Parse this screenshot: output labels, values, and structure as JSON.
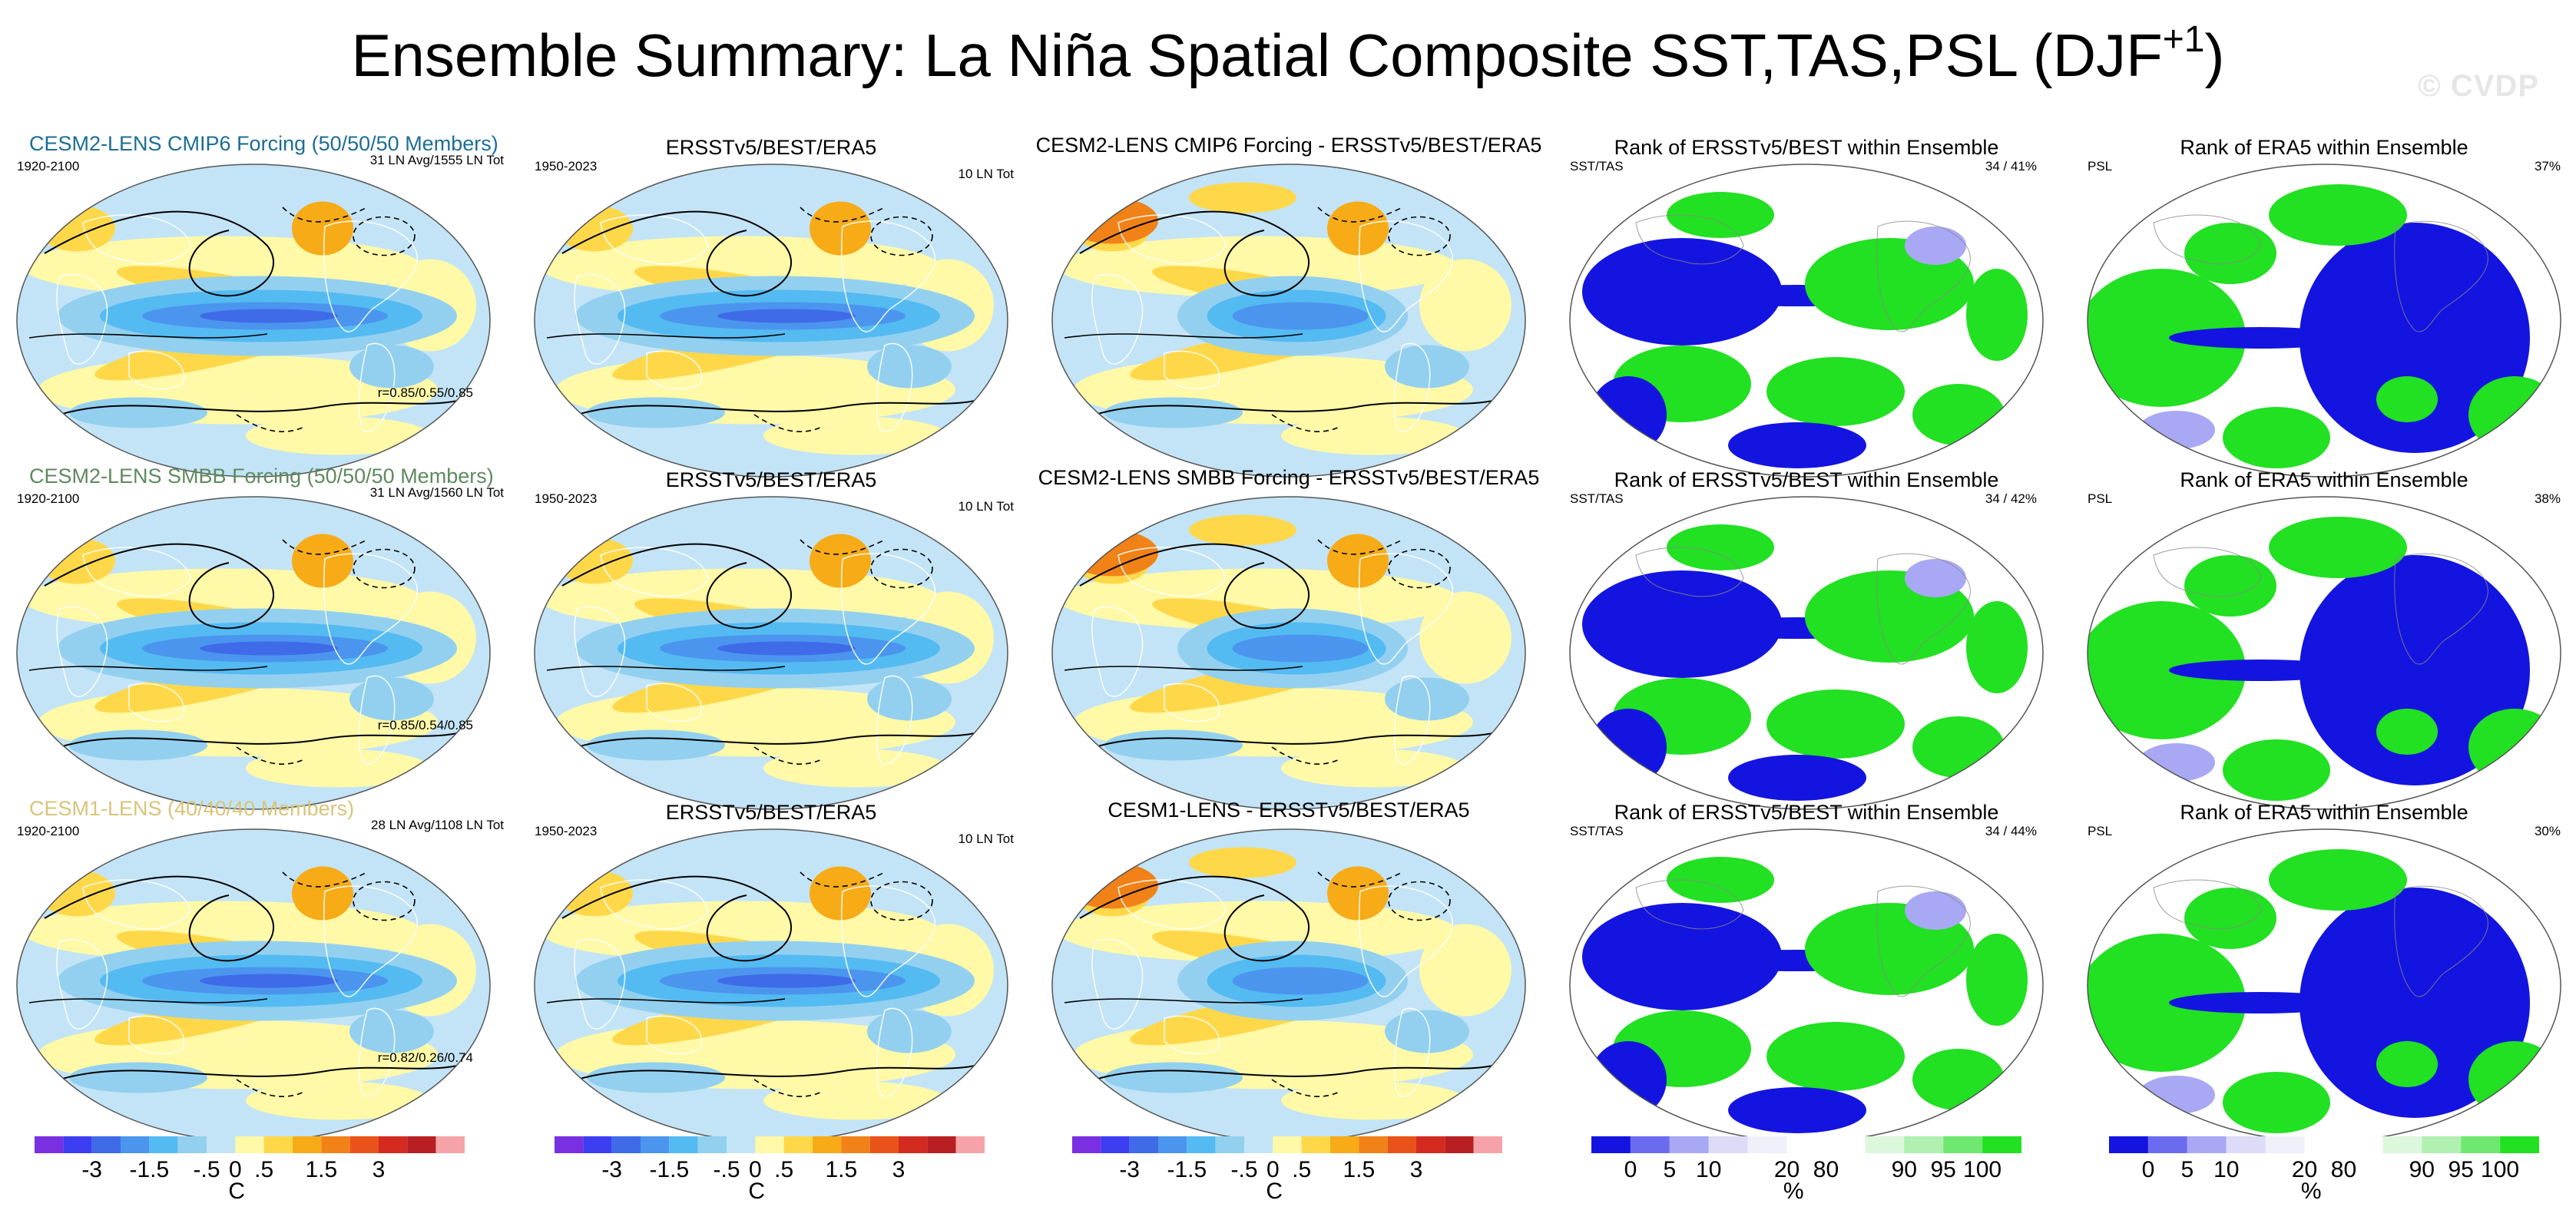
{
  "title": {
    "text": "Ensemble Summary: La Niña Spatial Composite SST,TAS,PSL (DJF",
    "sup": "+1",
    "close": ")"
  },
  "watermark": "© CVDP",
  "rows": [
    {
      "model_title": "CESM2-LENS CMIP6 Forcing (50/50/50 Members)",
      "model_title_color": "#1b6e96",
      "model_period": "1920-2100",
      "model_counts": "31 LN Avg/1555 LN Tot",
      "model_corr": "r=0.85/0.55/0.85",
      "obs_title": "ERSSTv5/BEST/ERA5",
      "obs_period": "1950-2023",
      "obs_counts": "10 LN Tot",
      "diff_title": "CESM2-LENS CMIP6 Forcing - ERSSTv5/BEST/ERA5",
      "rank1_title": "Rank of ERSSTv5/BEST within Ensemble",
      "rank1_var": "SST/TAS",
      "rank1_pct": "34 /  41%",
      "rank2_title": "Rank of ERA5 within Ensemble",
      "rank2_var": "PSL",
      "rank2_pct": "37%"
    },
    {
      "model_title": "CESM2-LENS SMBB Forcing (50/50/50 Members)",
      "model_title_color": "#5e8a5e",
      "model_period": "1920-2100",
      "model_counts": "31 LN Avg/1560 LN Tot",
      "model_corr": "r=0.85/0.54/0.85",
      "obs_title": "ERSSTv5/BEST/ERA5",
      "obs_period": "1950-2023",
      "obs_counts": "10 LN Tot",
      "diff_title": "CESM2-LENS SMBB Forcing - ERSSTv5/BEST/ERA5",
      "rank1_title": "Rank of ERSSTv5/BEST within Ensemble",
      "rank1_var": "SST/TAS",
      "rank1_pct": "34 /  42%",
      "rank2_title": "Rank of ERA5 within Ensemble",
      "rank2_var": "PSL",
      "rank2_pct": "38%"
    },
    {
      "model_title": "CESM1-LENS (40/40/40 Members)",
      "model_title_color": "#d9c47a",
      "model_period": "1920-2100",
      "model_counts": "28 LN Avg/1108 LN Tot",
      "model_corr": "r=0.82/0.26/0.74",
      "obs_title": "ERSSTv5/BEST/ERA5",
      "obs_period": "1950-2023",
      "obs_counts": "10 LN Tot",
      "diff_title": "CESM1-LENS - ERSSTv5/BEST/ERA5",
      "rank1_title": "Rank of ERSSTv5/BEST within Ensemble",
      "rank1_var": "SST/TAS",
      "rank1_pct": "34 /  44%",
      "rank2_title": "Rank of ERA5 within Ensemble",
      "rank2_var": "PSL",
      "rank2_pct": "30%"
    }
  ],
  "colorbars": {
    "temp": {
      "colors": [
        "#7a2fe0",
        "#3d3df2",
        "#3f6be8",
        "#4b95ee",
        "#54baf2",
        "#93d0ef",
        "#c3e4f6",
        "#fff9a8",
        "#ffd84a",
        "#f7ab17",
        "#f08218",
        "#e9531a",
        "#d42b20",
        "#b81f22",
        "#f5a3a8"
      ],
      "labels": [
        {
          "text": "-3",
          "at": 2
        },
        {
          "text": "-1.5",
          "at": 4
        },
        {
          "text": "-.5",
          "at": 6
        },
        {
          "text": "0",
          "at": 7
        },
        {
          "text": ".5",
          "at": 8
        },
        {
          "text": "1.5",
          "at": 10
        },
        {
          "text": "3",
          "at": 12
        }
      ],
      "unit": "C"
    },
    "rank": {
      "colors": [
        "#1414e0",
        "#6b6bf0",
        "#a8a8f4",
        "#dcdcf8",
        "#f0f0fa",
        "#ffffff",
        "#ffffff",
        "#ddf7dd",
        "#b0f0b0",
        "#6fe86f",
        "#22e022"
      ],
      "labels": [
        {
          "text": "0",
          "at": 1
        },
        {
          "text": "5",
          "at": 2
        },
        {
          "text": "10",
          "at": 3
        },
        {
          "text": "20",
          "at": 5
        },
        {
          "text": "80",
          "at": 6
        },
        {
          "text": "90",
          "at": 8
        },
        {
          "text": "95",
          "at": 9
        },
        {
          "text": "100",
          "at": 10
        }
      ],
      "unit": "%"
    }
  },
  "chart_data": {
    "type": "heatmap",
    "title": "Ensemble Summary: La Niña Spatial Composite SST,TAS,PSL (DJF+1)",
    "panels_per_row": [
      "model composite",
      "observed composite",
      "model - observed",
      "rank of ERSSTv5/BEST",
      "rank of ERA5"
    ],
    "temperature_levels": [
      -3,
      -1.5,
      -0.5,
      0,
      0.5,
      1.5,
      3
    ],
    "temperature_unit": "C",
    "rank_levels": [
      0,
      5,
      10,
      20,
      80,
      90,
      95,
      100
    ],
    "rank_unit": "%"
  }
}
